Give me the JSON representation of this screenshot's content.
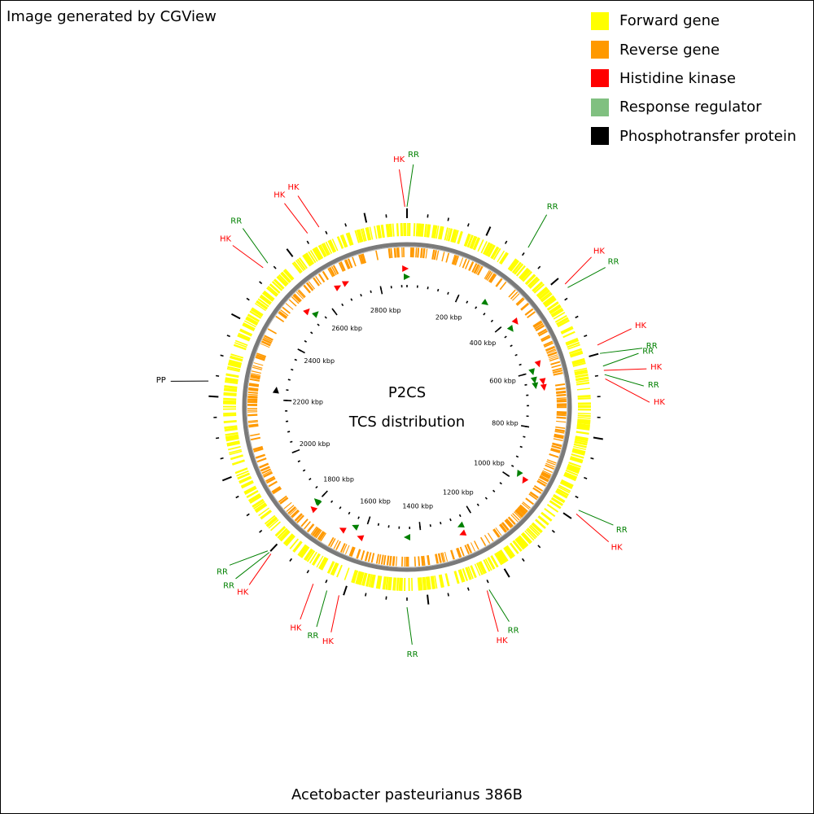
{
  "credit": "Image generated by CGView",
  "organism": "Acetobacter pasteurianus 386B",
  "center_title": "P2CS",
  "center_subtitle": "TCS distribution",
  "legend": [
    {
      "label": "Forward gene",
      "color": "#ffff00"
    },
    {
      "label": "Reverse gene",
      "color": "#ff9900"
    },
    {
      "label": "Histidine kinase",
      "color": "#ff0000"
    },
    {
      "label": "Response regulator",
      "color": "#80c080"
    },
    {
      "label": "Phosphotransfer protein",
      "color": "#000000"
    }
  ],
  "feature_colors": {
    "HK": "#ff0000",
    "RR": "#008000",
    "PP": "#000000",
    "HK_line": "#ff0000",
    "RR_line": "#008000"
  },
  "genome_kbp": 2900,
  "tick_labels": [
    "200 kbp",
    "400 kbp",
    "600 kbp",
    "800 kbp",
    "1000 kbp",
    "1200 kbp",
    "1400 kbp",
    "1600 kbp",
    "1800 kbp",
    "2000 kbp",
    "2200 kbp",
    "2400 kbp",
    "2600 kbp",
    "2800 kbp"
  ],
  "tick_positions_kbp": [
    200,
    400,
    600,
    800,
    1000,
    1200,
    1400,
    1600,
    1800,
    2000,
    2200,
    2400,
    2600,
    2800
  ],
  "features": [
    {
      "type": "RR",
      "kbp": 2900,
      "label": "RR",
      "strand": "+"
    },
    {
      "type": "HK",
      "kbp": 2895,
      "label": "HK",
      "strand": "-"
    },
    {
      "type": "RR",
      "kbp": 300,
      "label": "RR",
      "strand": "+"
    },
    {
      "type": "HK",
      "kbp": 420,
      "label": "HK",
      "strand": "-"
    },
    {
      "type": "RR",
      "kbp": 430,
      "label": "RR",
      "strand": "+"
    },
    {
      "type": "HK",
      "kbp": 580,
      "label": "HK",
      "strand": "-"
    },
    {
      "type": "RR",
      "kbp": 600,
      "label": "RR",
      "strand": "+"
    },
    {
      "type": "RR",
      "kbp": 630,
      "label": "RR",
      "strand": "+"
    },
    {
      "type": "HK",
      "kbp": 640,
      "label": "HK",
      "strand": "-"
    },
    {
      "type": "RR",
      "kbp": 650,
      "label": "RR",
      "strand": "+"
    },
    {
      "type": "HK",
      "kbp": 660,
      "label": "HK",
      "strand": "-"
    },
    {
      "type": "RR",
      "kbp": 975,
      "label": "RR",
      "strand": "+"
    },
    {
      "type": "HK",
      "kbp": 985,
      "label": "HK",
      "strand": "-"
    },
    {
      "type": "HK",
      "kbp": 1260,
      "label": "HK",
      "strand": "-"
    },
    {
      "type": "RR",
      "kbp": 1255,
      "label": "RR",
      "strand": "+"
    },
    {
      "type": "RR",
      "kbp": 1450,
      "label": "RR",
      "strand": "+"
    },
    {
      "type": "HK",
      "kbp": 1610,
      "label": "HK",
      "strand": "-"
    },
    {
      "type": "RR",
      "kbp": 1640,
      "label": "RR",
      "strand": "+"
    },
    {
      "type": "HK",
      "kbp": 1675,
      "label": "HK",
      "strand": "-"
    },
    {
      "type": "RR",
      "kbp": 1800,
      "label": "RR",
      "strand": "+"
    },
    {
      "type": "RR",
      "kbp": 1805,
      "label": "RR",
      "strand": "+"
    },
    {
      "type": "HK",
      "kbp": 1795,
      "label": "HK",
      "strand": "-"
    },
    {
      "type": "PP",
      "kbp": 2235,
      "label": "PP",
      "strand": "+"
    },
    {
      "type": "HK",
      "kbp": 2530,
      "label": "HK",
      "strand": "-"
    },
    {
      "type": "RR",
      "kbp": 2545,
      "label": "RR",
      "strand": "+"
    },
    {
      "type": "HK",
      "kbp": 2660,
      "label": "HK",
      "strand": "-"
    },
    {
      "type": "HK",
      "kbp": 2690,
      "label": "HK",
      "strand": "-"
    }
  ]
}
